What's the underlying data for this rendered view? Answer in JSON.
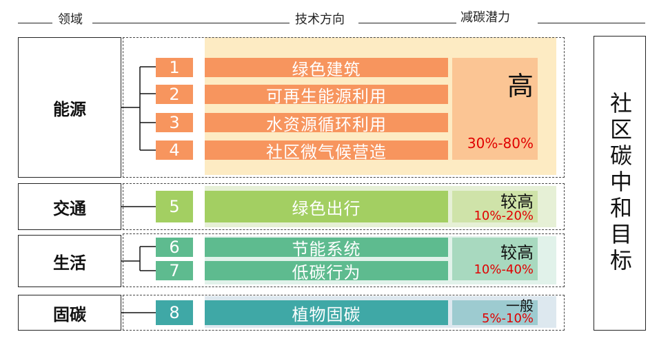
{
  "header": {
    "domain_label": "领域",
    "direction_label": "技术方向",
    "potential_label": "减碳潜力"
  },
  "colors": {
    "energy": "#f7955e",
    "energy_bg": "#fde8b8",
    "transport": "#a3cf62",
    "life": "#5ebb8f",
    "carbon": "#3fa8a6",
    "range_text": "#e00000"
  },
  "domains": [
    {
      "name": "能源"
    },
    {
      "name": "交通"
    },
    {
      "name": "生活"
    },
    {
      "name": "固碳"
    }
  ],
  "items": [
    {
      "num": "1",
      "label": "绿色建筑"
    },
    {
      "num": "2",
      "label": "可再生能源利用"
    },
    {
      "num": "3",
      "label": "水资源循环利用"
    },
    {
      "num": "4",
      "label": "社区微气候营造"
    },
    {
      "num": "5",
      "label": "绿色出行"
    },
    {
      "num": "6",
      "label": "节能系统"
    },
    {
      "num": "7",
      "label": "低碳行为"
    },
    {
      "num": "8",
      "label": "植物固碳"
    }
  ],
  "potentials": [
    {
      "level": "高",
      "range": "30%-80%"
    },
    {
      "level": "较高",
      "range": "10%-20%"
    },
    {
      "level": "较高",
      "range": "10%-40%"
    },
    {
      "level": "一般",
      "range": "5%-10%"
    }
  ],
  "goal": {
    "text": "社区碳中和目标"
  }
}
